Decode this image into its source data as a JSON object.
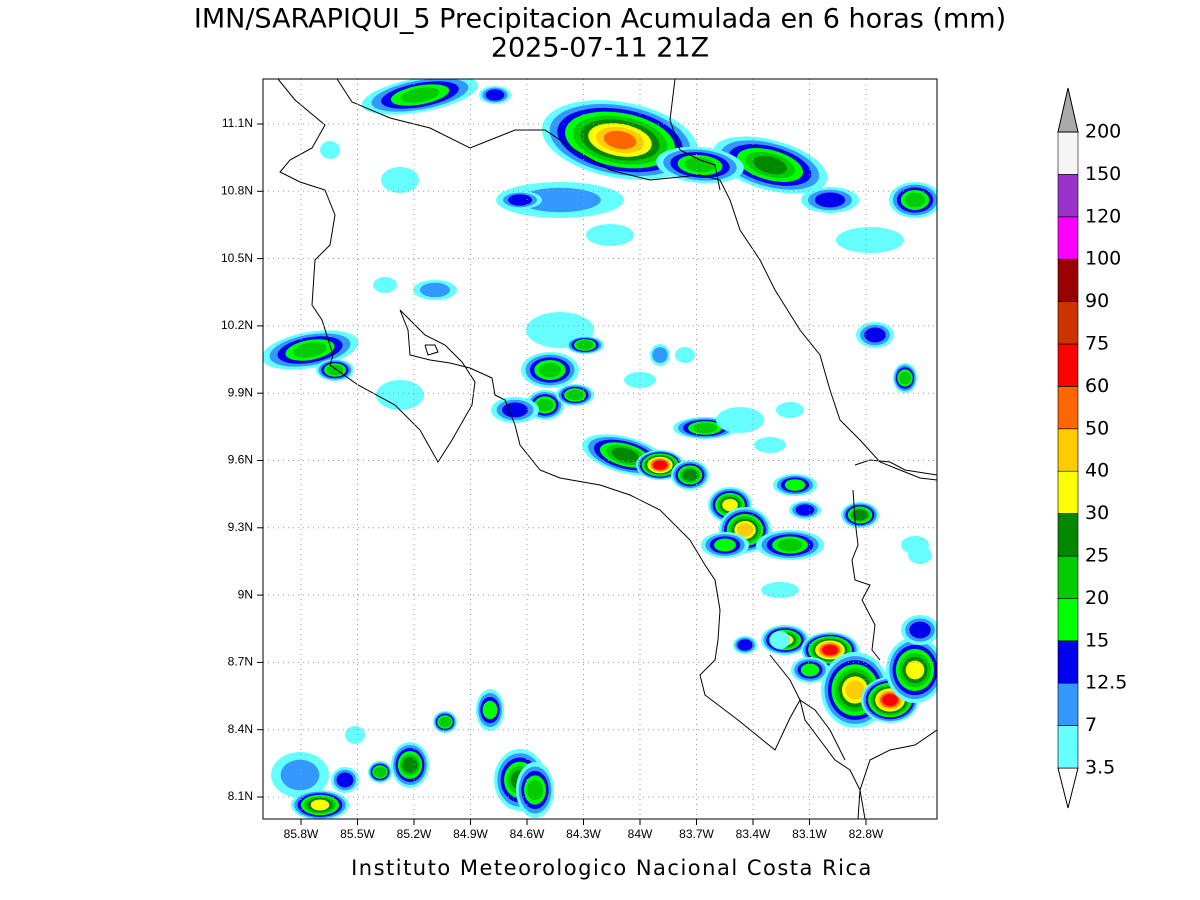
{
  "title": "IMN/SARAPIQUI_5 Precipitacion Acumulada en 6 horas (mm)",
  "subtitle": "2025-07-11 21Z",
  "map": {
    "lat_labels": [
      "11.1N",
      "10.8N",
      "10.5N",
      "10.2N",
      "9.9N",
      "9.6N",
      "9.3N",
      "9N",
      "8.7N",
      "8.4N",
      "8.1N"
    ],
    "lon_labels": [
      "85.8W",
      "85.5W",
      "85.2W",
      "84.9W",
      "84.6W",
      "84.3W",
      "84W",
      "83.7W",
      "83.4W",
      "83.1W",
      "82.8W"
    ]
  },
  "colorbar": {
    "labels": [
      "3.5",
      "7",
      "12.5",
      "15",
      "20",
      "25",
      "30",
      "40",
      "50",
      "60",
      "75",
      "90",
      "100",
      "120",
      "150",
      "200"
    ],
    "colors": [
      "#ffffff",
      "#66ffff",
      "#3399ff",
      "#0000ee",
      "#00ff00",
      "#00cc00",
      "#008800",
      "#ffff00",
      "#ffcc00",
      "#ff6600",
      "#ff0000",
      "#cc3300",
      "#990000",
      "#ff00ff",
      "#9933cc",
      "#f5f5f5",
      "#aaaaaa"
    ]
  },
  "footer": "Instituto Meteorologico Nacional Costa Rica"
}
